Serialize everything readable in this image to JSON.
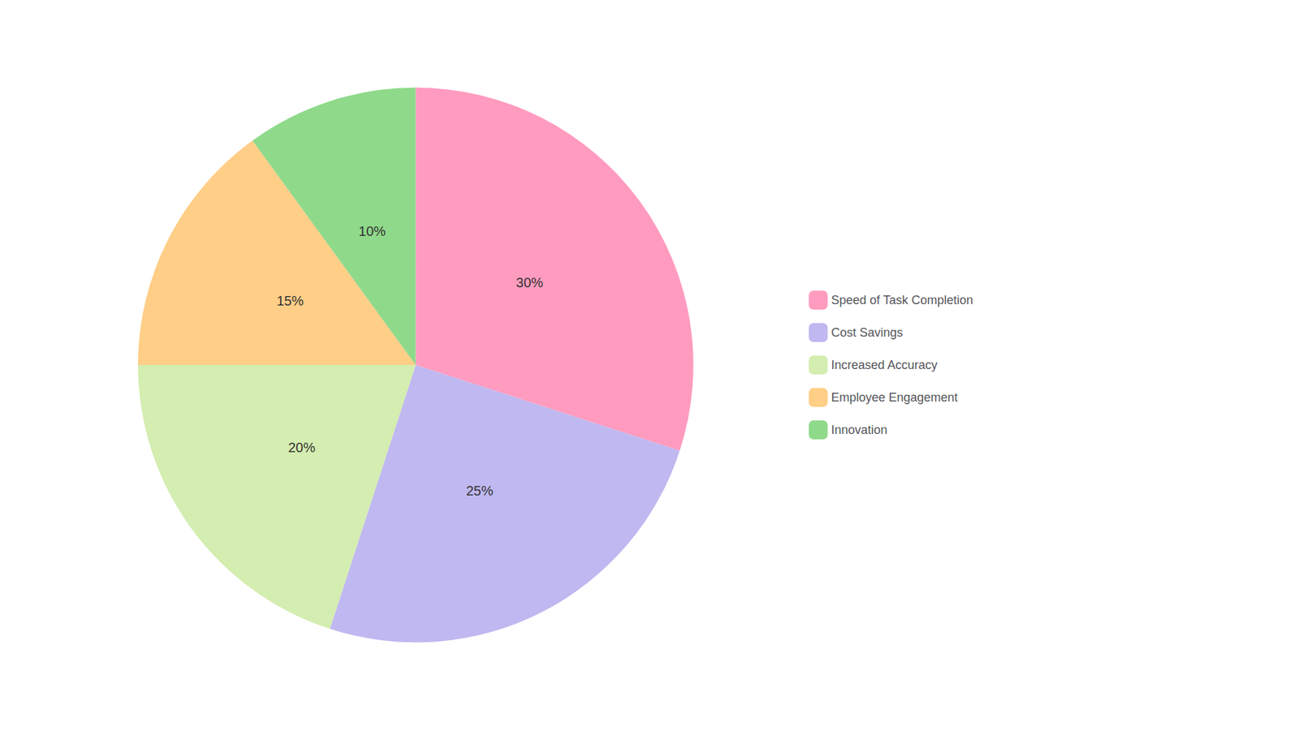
{
  "chart_data": {
    "type": "pie",
    "categories": [
      "Speed of Task Completion",
      "Cost Savings",
      "Increased Accuracy",
      "Employee Engagement",
      "Innovation"
    ],
    "values": [
      30,
      25,
      20,
      15,
      10
    ],
    "value_labels": [
      "30%",
      "25%",
      "20%",
      "15%",
      "10%"
    ],
    "colors": [
      "#FF9BBF",
      "#C0B8F0",
      "#D4EDB0",
      "#FFCE87",
      "#8FD98A"
    ],
    "data_labels": true,
    "legend": "right"
  }
}
